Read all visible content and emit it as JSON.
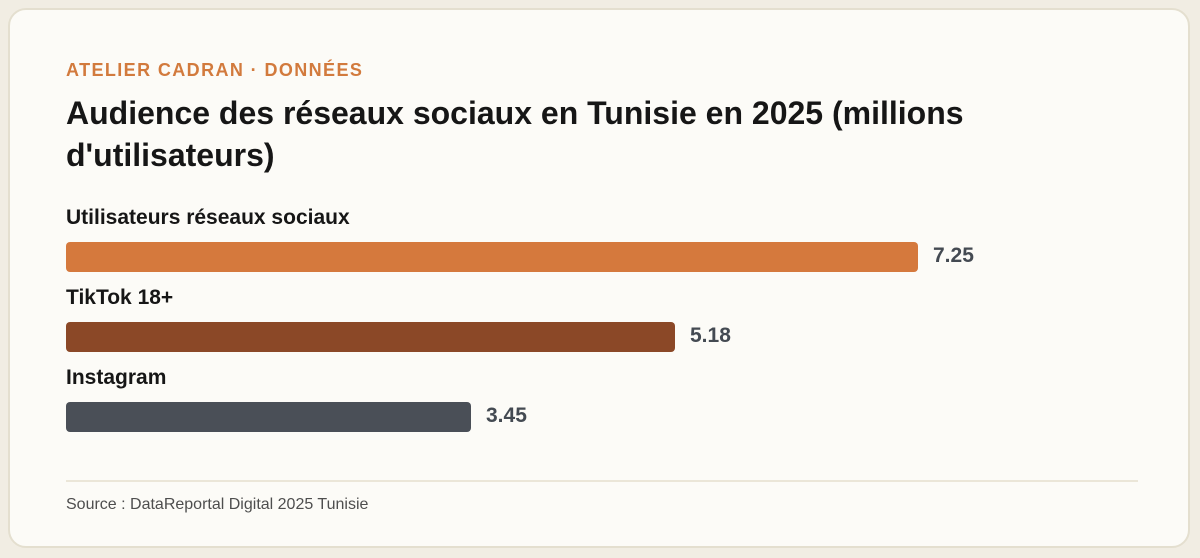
{
  "eyebrow": "ATELIER CADRAN · DONNÉES",
  "source": "Source : DataReportal Digital 2025 Tunisie",
  "chart_data": {
    "type": "bar",
    "orientation": "horizontal",
    "title": "Audience des réseaux sociaux en Tunisie en 2025 (millions d'utilisateurs)",
    "categories": [
      "Utilisateurs réseaux sociaux",
      "TikTok 18+",
      "Instagram"
    ],
    "values": [
      7.25,
      5.18,
      3.45
    ],
    "value_labels": [
      "7.25",
      "5.18",
      "3.45"
    ],
    "colors": [
      "#d5793d",
      "#8b4827",
      "#4a4f57"
    ],
    "xlim": [
      0,
      7.25
    ],
    "grid": false,
    "legend": "none"
  }
}
